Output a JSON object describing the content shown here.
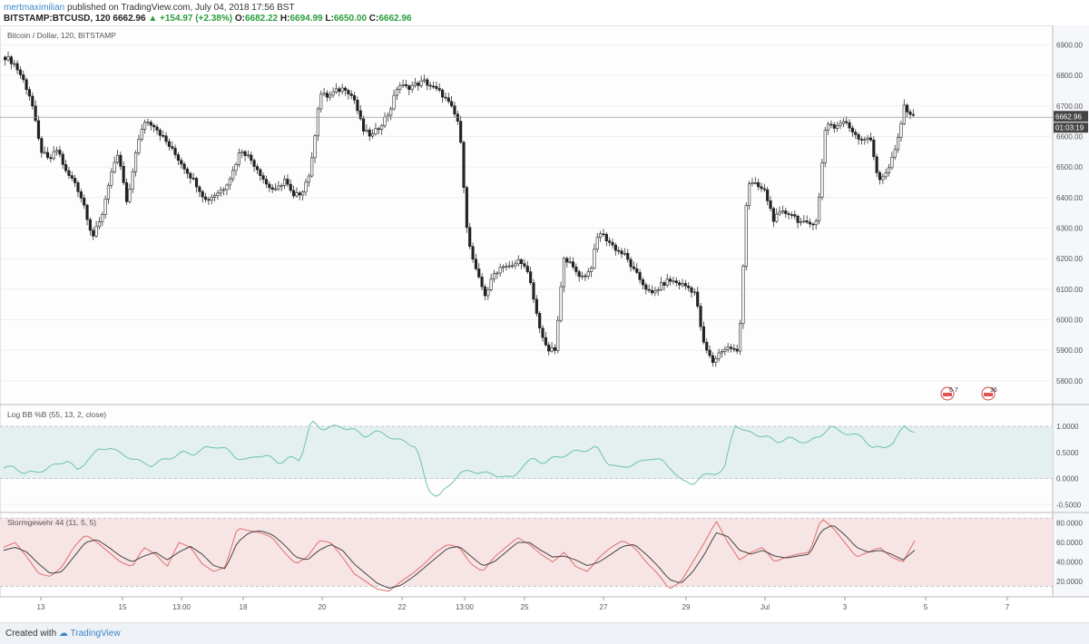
{
  "header": {
    "author": "mertmaximilian",
    "published": "published on TradingView.com, July 04, 2018 17:56 BST",
    "symbol": "BITSTAMP:BTCUSD, 120",
    "price": "6662.96",
    "change": "+154.97 (+2.38%)",
    "open_label": "O:",
    "open": "6682.22",
    "high_label": "H:",
    "high": "6694.99",
    "low_label": "L:",
    "low": "6650.00",
    "close_label": "C:",
    "close": "6662.96"
  },
  "footer": {
    "created_with": "Created with",
    "brand": "TradingView"
  },
  "colors": {
    "up": "#ffffff",
    "down": "#222222",
    "wick": "#333333",
    "bb_line": "#6fc1b0",
    "bb_fill": "#e3f0ef",
    "stoch_k": "#e07070",
    "stoch_d": "#444444",
    "stoch_fill": "#f7e4e4",
    "grid": "#eeeeee",
    "axis_bg": "#f5f7fa"
  },
  "chart_data": [
    {
      "type": "candlestick",
      "title": "Bitcoin / Dollar, 120, BITSTAMP",
      "ylim": [
        5740,
        6940
      ],
      "yticks": [
        "5800.00",
        "5900.00",
        "6000.00",
        "6100.00",
        "6200.00",
        "6300.00",
        "6400.00",
        "6500.00",
        "6600.00",
        "6700.00",
        "6800.00",
        "6900.00"
      ],
      "ytick_values": [
        5800,
        5900,
        6000,
        6100,
        6200,
        6300,
        6400,
        6500,
        6600,
        6700,
        6800,
        6900
      ],
      "last_price": 6662.96,
      "last_price_label": "6662.96",
      "countdown": "01:03:19",
      "event_markers": [
        "6 7",
        "36"
      ],
      "x_ticks": [
        "13",
        "15",
        "13:00",
        "18",
        "20",
        "22",
        "13:00",
        "25",
        "27",
        "29",
        "Jul",
        "3",
        "5",
        "7"
      ],
      "ohlc_anchors_close": [
        6860,
        6840,
        6790,
        6720,
        6560,
        6520,
        6560,
        6480,
        6450,
        6380,
        6270,
        6330,
        6470,
        6540,
        6370,
        6560,
        6650,
        6640,
        6600,
        6560,
        6520,
        6480,
        6440,
        6390,
        6410,
        6430,
        6480,
        6560,
        6530,
        6490,
        6440,
        6420,
        6460,
        6400,
        6420,
        6490,
        6740,
        6730,
        6750,
        6760,
        6720,
        6620,
        6600,
        6640,
        6680,
        6770,
        6760,
        6770,
        6780,
        6760,
        6740,
        6700,
        6640,
        6260,
        6150,
        6080,
        6150,
        6180,
        6170,
        6200,
        6140,
        6000,
        5900,
        5900,
        6210,
        6170,
        6140,
        6160,
        6290,
        6260,
        6230,
        6210,
        6160,
        6120,
        6080,
        6110,
        6130,
        6120,
        6110,
        6090,
        5920,
        5860,
        5900,
        5910,
        5890,
        6450,
        6440,
        6420,
        6330,
        6350,
        6350,
        6320,
        6310,
        6330,
        6650,
        6630,
        6650,
        6620,
        6590,
        6600,
        6460,
        6480,
        6560,
        6700,
        6663
      ]
    },
    {
      "type": "line",
      "title": "Log BB %B (55, 13, 2, close)",
      "ylim": [
        -0.6,
        1.35
      ],
      "yticks": [
        "-0.5000",
        "0.0000",
        "0.5000",
        "1.0000"
      ],
      "ytick_values": [
        -0.5,
        0,
        0.5,
        1.0
      ],
      "band": [
        0,
        1
      ],
      "anchors": [
        0.2,
        0.22,
        0.1,
        0.12,
        0.18,
        0.27,
        0.35,
        0.15,
        0.38,
        0.55,
        0.6,
        0.48,
        0.4,
        0.31,
        0.25,
        0.35,
        0.42,
        0.5,
        0.47,
        0.58,
        0.62,
        0.56,
        0.4,
        0.35,
        0.45,
        0.42,
        0.3,
        0.4,
        0.35,
        1.1,
        0.95,
        1.0,
        0.98,
        0.95,
        0.8,
        0.9,
        0.85,
        0.75,
        0.7,
        0.6,
        -0.2,
        -0.35,
        -0.15,
        0.1,
        0.14,
        0.12,
        0.08,
        0.05,
        0.0,
        0.25,
        0.38,
        0.3,
        0.4,
        0.45,
        0.52,
        0.55,
        0.6,
        0.3,
        0.2,
        0.25,
        0.3,
        0.4,
        0.35,
        0.2,
        -0.05,
        -0.1,
        0.05,
        0.1,
        0.15,
        1.05,
        0.9,
        0.85,
        0.8,
        0.7,
        0.78,
        0.72,
        0.7,
        0.8,
        1.0,
        0.9,
        0.85,
        0.8,
        0.6,
        0.58,
        0.7,
        1.0,
        0.9
      ]
    },
    {
      "type": "line",
      "title": "Stormgewehr 44 (11, 5, 5)",
      "ylim": [
        7,
        87
      ],
      "yticks": [
        "20.0000",
        "40.0000",
        "60.0000",
        "80.0000"
      ],
      "ytick_values": [
        20,
        40,
        60,
        80
      ],
      "band": [
        15,
        85
      ],
      "series": [
        {
          "values": [
            55,
            60,
            45,
            28,
            25,
            35,
            55,
            68,
            60,
            50,
            40,
            35,
            55,
            48,
            35,
            60,
            55,
            38,
            30,
            35,
            75,
            72,
            70,
            65,
            50,
            38,
            45,
            62,
            60,
            45,
            28,
            20,
            12,
            10,
            20,
            28,
            38,
            50,
            58,
            55,
            38,
            30,
            45,
            55,
            65,
            58,
            48,
            40,
            50,
            35,
            30,
            45,
            55,
            62,
            55,
            40,
            28,
            12,
            20,
            40,
            60,
            82,
            60,
            42,
            50,
            55,
            40,
            45,
            48,
            50,
            85,
            75,
            60,
            45,
            50,
            55,
            45,
            40,
            62
          ]
        },
        {
          "values": [
            52,
            55,
            50,
            38,
            28,
            30,
            45,
            60,
            63,
            55,
            46,
            40,
            46,
            50,
            42,
            50,
            56,
            48,
            36,
            33,
            60,
            70,
            72,
            68,
            58,
            45,
            42,
            52,
            58,
            52,
            38,
            28,
            18,
            13,
            16,
            24,
            34,
            44,
            54,
            56,
            46,
            36,
            40,
            50,
            60,
            60,
            52,
            45,
            46,
            42,
            36,
            40,
            48,
            56,
            58,
            48,
            36,
            22,
            18,
            30,
            48,
            70,
            66,
            52,
            48,
            52,
            46,
            44,
            46,
            48,
            72,
            78,
            68,
            55,
            50,
            52,
            48,
            42,
            52
          ]
        }
      ]
    }
  ]
}
